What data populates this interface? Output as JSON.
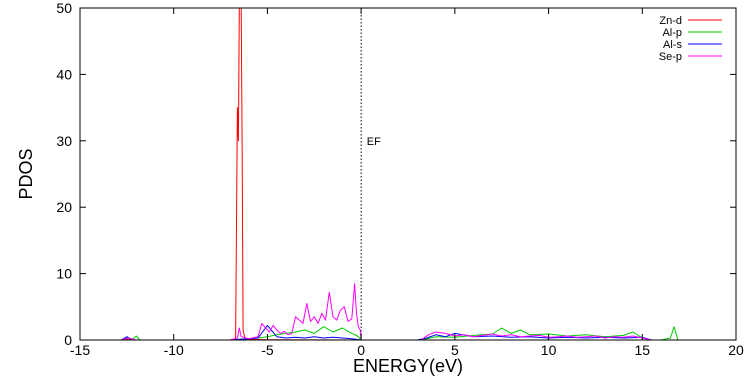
{
  "chart_data": {
    "type": "line",
    "title": "",
    "xlabel": "ENERGY(eV)",
    "ylabel": "PDOS",
    "xlim": [
      -15,
      20
    ],
    "ylim": [
      0,
      50
    ],
    "xticks": [
      -15,
      -10,
      -5,
      0,
      5,
      10,
      15,
      20
    ],
    "yticks": [
      0,
      10,
      20,
      30,
      40,
      50
    ],
    "xtick_labels": [
      "-15",
      "-10",
      "-5",
      "0",
      "5",
      "10",
      "15",
      "20"
    ],
    "ytick_labels": [
      "0",
      "10",
      "20",
      "30",
      "40",
      "50"
    ],
    "grid": false,
    "legend_position": "top-right",
    "annotations": [
      {
        "text": "EF",
        "x": 0.3,
        "y": 30
      }
    ],
    "vertical_lines": [
      {
        "x": 0,
        "style": "dotted",
        "color": "#000000"
      }
    ],
    "series": [
      {
        "name": "Zn-d",
        "color": "#ff0000",
        "x": [
          -15,
          -12.6,
          -12.4,
          -12.2,
          -7,
          -6.7,
          -6.6,
          -6.55,
          -6.5,
          -6.45,
          -6.4,
          -6.35,
          -6.3,
          -6.2,
          -6.0,
          -5,
          0,
          5,
          10,
          15,
          20
        ],
        "y": [
          0,
          0,
          0.2,
          0,
          0,
          0.2,
          35,
          30,
          50,
          50,
          50,
          30,
          1.5,
          0.3,
          0.1,
          0.05,
          0,
          0,
          0,
          0,
          0
        ]
      },
      {
        "name": "Al-p",
        "color": "#00cc00",
        "x": [
          -15,
          -12.8,
          -12.5,
          -12.2,
          -12.0,
          -11.8,
          -7,
          -5.5,
          -5,
          -4.5,
          -4,
          -3.5,
          -3,
          -2.5,
          -2,
          -1.5,
          -1,
          -0.5,
          -0.2,
          0,
          3,
          3.5,
          4,
          5,
          6,
          7,
          7.5,
          8,
          8.5,
          9,
          10,
          11,
          12,
          13,
          14,
          14.5,
          15,
          15.5,
          16,
          16.5,
          16.7,
          16.9,
          17.5,
          20
        ],
        "y": [
          0,
          0,
          0.3,
          0.1,
          0.6,
          0,
          0,
          0.3,
          0.5,
          0.8,
          1.0,
          1.2,
          1.5,
          1.0,
          2.0,
          1.2,
          1.8,
          1.0,
          0.6,
          0,
          0,
          0.2,
          0.5,
          0.4,
          0.7,
          0.9,
          1.8,
          1.0,
          1.5,
          0.8,
          0.9,
          0.6,
          0.8,
          0.5,
          0.7,
          1.2,
          0.3,
          0,
          0,
          0.3,
          2.0,
          0,
          0,
          0
        ]
      },
      {
        "name": "Al-s",
        "color": "#0000ff",
        "x": [
          -15,
          -12.8,
          -12.5,
          -12.2,
          -7,
          -5.5,
          -5,
          -4.5,
          -4,
          -3.5,
          -3,
          -2.5,
          -2,
          -1.5,
          -1,
          -0.5,
          0,
          3,
          3.5,
          4,
          4.5,
          5,
          6,
          7,
          8,
          9,
          10,
          11,
          12,
          13,
          14,
          15,
          15.5,
          20
        ],
        "y": [
          0,
          0,
          0.5,
          0,
          0,
          0.3,
          2.2,
          0.5,
          0.3,
          0.4,
          0.3,
          0.5,
          0.3,
          0.4,
          0.3,
          0.2,
          0,
          0,
          0.3,
          0.8,
          0.5,
          1.0,
          0.5,
          0.6,
          0.4,
          0.5,
          0.3,
          0.4,
          0.3,
          0.4,
          0.3,
          0.4,
          0,
          0
        ]
      },
      {
        "name": "Se-p",
        "color": "#ff00ff",
        "x": [
          -15,
          -12.8,
          -12.4,
          -12.0,
          -7,
          -6.6,
          -6.5,
          -6.4,
          -6.0,
          -5.5,
          -5.3,
          -5.1,
          -4.9,
          -4.7,
          -4.5,
          -4.3,
          -4.1,
          -3.9,
          -3.7,
          -3.5,
          -3.3,
          -3.1,
          -2.9,
          -2.7,
          -2.5,
          -2.3,
          -2.1,
          -1.9,
          -1.7,
          -1.5,
          -1.3,
          -1.1,
          -0.9,
          -0.7,
          -0.5,
          -0.35,
          -0.25,
          -0.15,
          -0.05,
          0,
          3.2,
          3.6,
          4.0,
          4.5,
          5.0,
          5.5,
          6.0,
          6.5,
          7.0,
          7.5,
          8.0,
          8.5,
          9.0,
          9.5,
          10.0,
          10.5,
          11.0,
          11.5,
          12.0,
          12.5,
          13.0,
          13.5,
          14.0,
          14.5,
          15.0,
          15.5,
          20
        ],
        "y": [
          0,
          0,
          0.3,
          0,
          0,
          0.3,
          1.8,
          0.5,
          0.2,
          0.5,
          2.5,
          1.8,
          1.2,
          2.2,
          1.5,
          1.0,
          1.3,
          0.8,
          1.0,
          3.5,
          3.0,
          2.5,
          5.5,
          2.8,
          3.5,
          2.5,
          4.0,
          3.0,
          7.2,
          3.5,
          3.0,
          4.5,
          5.0,
          2.8,
          3.2,
          8.5,
          4.0,
          2.0,
          1.5,
          0,
          0,
          0.8,
          1.2,
          1.0,
          0.6,
          0.8,
          0.5,
          0.7,
          0.9,
          0.6,
          0.8,
          0.5,
          0.6,
          0.7,
          0.4,
          0.5,
          0.6,
          0.4,
          0.5,
          0.6,
          0.3,
          0.5,
          0.4,
          0.6,
          0.3,
          0,
          0
        ]
      }
    ]
  }
}
